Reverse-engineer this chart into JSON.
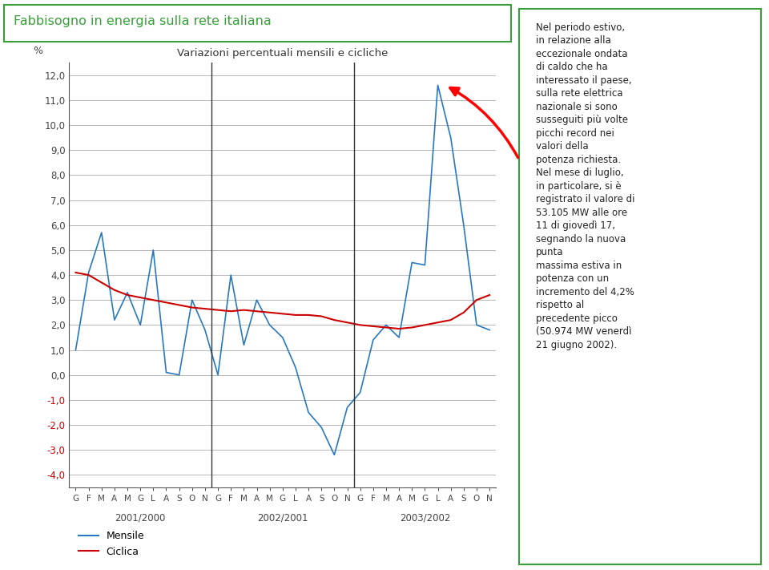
{
  "title_main": "Fabbisogno in energia sulla rete italiana",
  "chart_title": "Variazioni percentuali mensili e cicliche",
  "ylabel": "%",
  "ylim": [
    -4.5,
    12.5
  ],
  "yticks": [
    -4.0,
    -3.0,
    -2.0,
    -1.0,
    0.0,
    1.0,
    2.0,
    3.0,
    4.0,
    5.0,
    6.0,
    7.0,
    8.0,
    9.0,
    10.0,
    11.0,
    12.0
  ],
  "year_labels": [
    "2001/2000",
    "2002/2001",
    "2003/2002"
  ],
  "month_labels_year1": [
    "G",
    "F",
    "M",
    "A",
    "M",
    "G",
    "L",
    "A",
    "S",
    "O",
    "N"
  ],
  "month_labels_year2": [
    "G",
    "F",
    "M",
    "A",
    "M",
    "G",
    "L",
    "A",
    "S",
    "O",
    "N"
  ],
  "month_labels_year3": [
    "G",
    "F",
    "M",
    "A",
    "M",
    "G",
    "L",
    "A",
    "S",
    "O",
    "N"
  ],
  "mensile": [
    1.0,
    4.1,
    5.7,
    2.2,
    3.3,
    2.0,
    5.0,
    0.1,
    0.0,
    3.0,
    1.8,
    0.0,
    4.0,
    1.2,
    3.0,
    2.0,
    1.5,
    0.3,
    -1.5,
    -2.1,
    -3.2,
    -1.3,
    -0.7,
    1.4,
    2.0,
    1.5,
    4.5,
    4.4,
    11.6,
    9.5,
    6.0,
    2.0,
    1.8
  ],
  "ciclica": [
    4.1,
    4.0,
    3.7,
    3.4,
    3.2,
    3.1,
    3.0,
    2.9,
    2.8,
    2.7,
    2.65,
    2.6,
    2.55,
    2.6,
    2.55,
    2.5,
    2.45,
    2.4,
    2.4,
    2.35,
    2.2,
    2.1,
    2.0,
    1.95,
    1.9,
    1.85,
    1.9,
    2.0,
    2.1,
    2.2,
    2.5,
    3.0,
    3.2
  ],
  "mensile_color": "#2878c0",
  "ciclica_color": "#cc0000",
  "grid_color": "#999999",
  "bg_color": "#ffffff",
  "title_color": "#3a9e3a",
  "title_border_color": "#3a9e3a",
  "ytick_neg_color": "#cc0000",
  "ytick_pos_color": "#444444",
  "text_box_text": "Nel periodo estivo,\nin relazione alla\neccezionale ondata\ndi caldo che ha\ninteressato il paese,\nsulla rete elettrica\nnazionale si sono\nsusseguiti più volte\npicchi record nei\nvalori della\npotenza richiesta.\nNel mese di luglio,\nin particolare, si è\nregistrato il valore di\n53.105 MW alle ore\n11 di giovedì 17,\nsegnando la nuova\npunta\nmassima estiva in\npotenza con un\nincremento del 4,2%\nrispetto al\nprecedente picco\n(50.974 MW venerdì\n21 giugno 2002).",
  "n_per_year": 11,
  "n_years": 3
}
